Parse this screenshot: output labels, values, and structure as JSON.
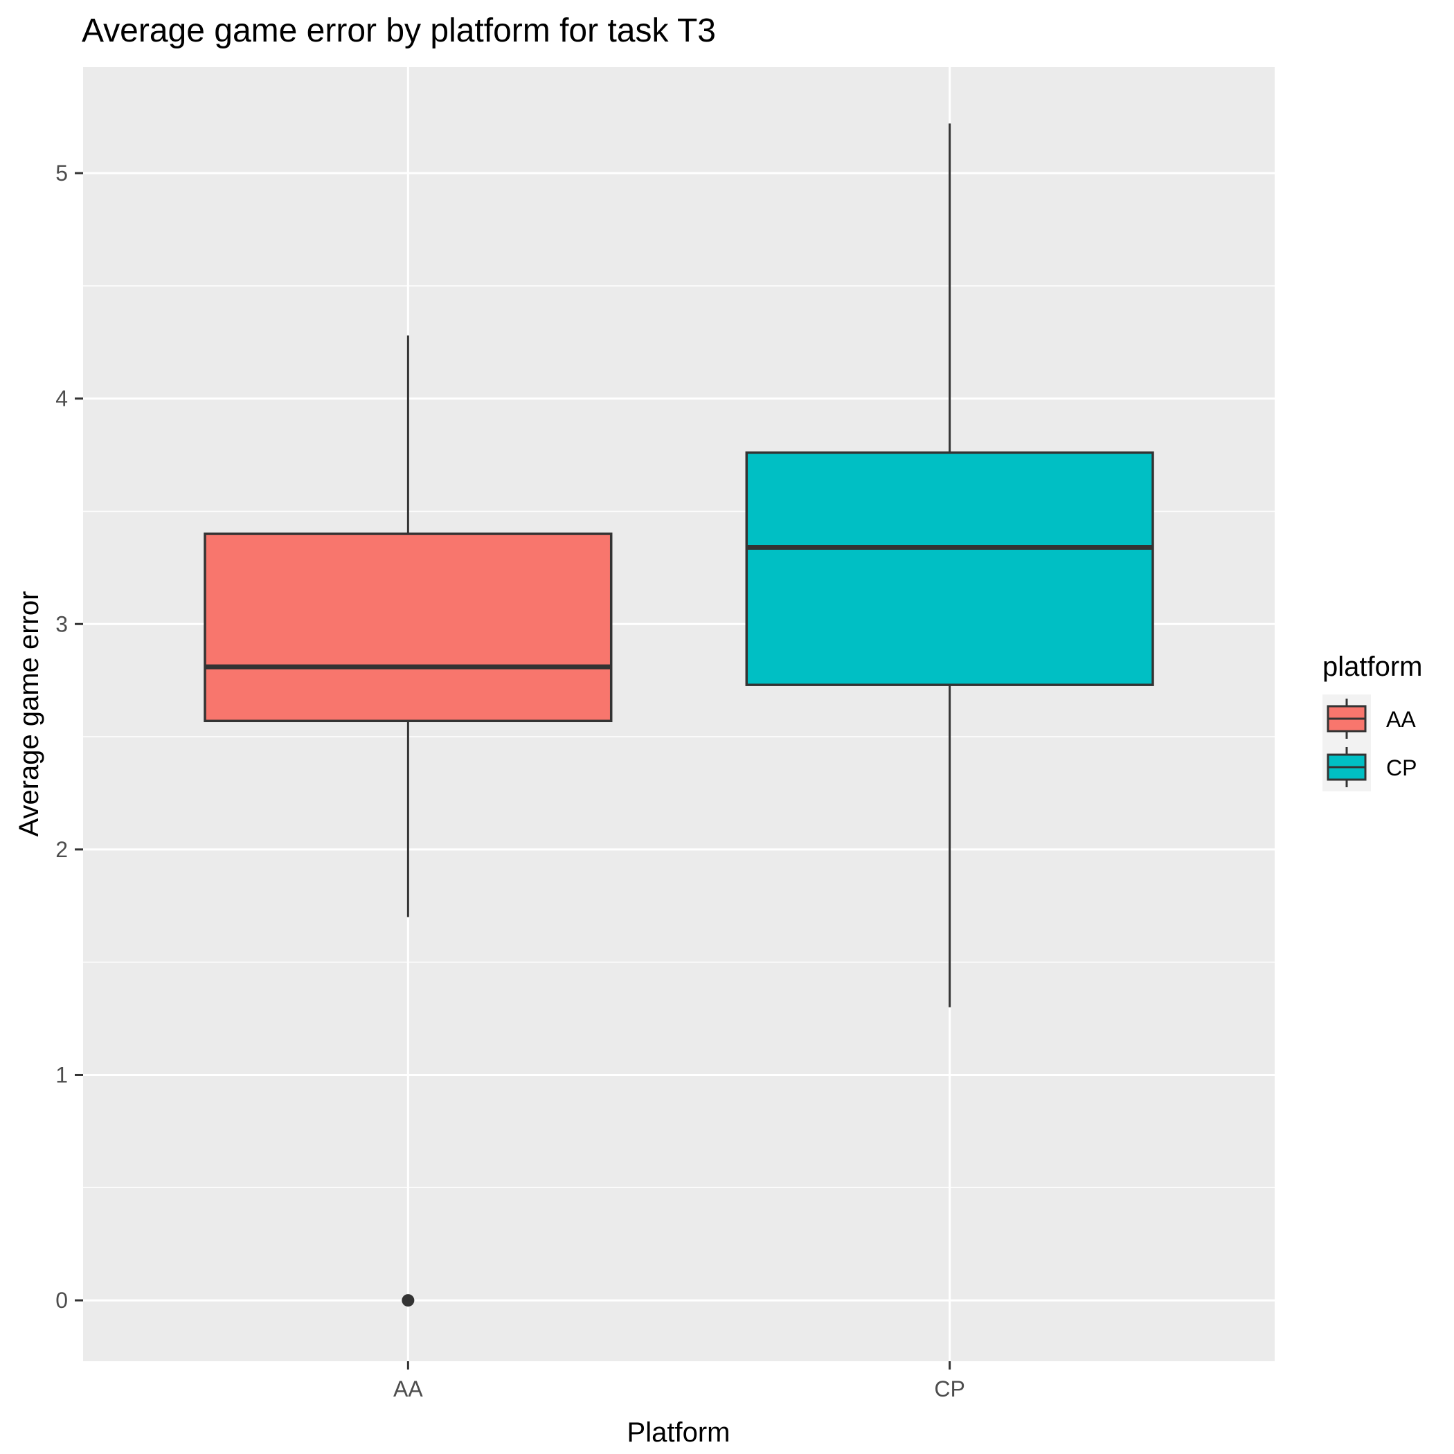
{
  "chart_data": {
    "type": "boxplot",
    "title": "Average game error by platform for task T3",
    "xlabel": "Platform",
    "ylabel": "Average game error",
    "categories": [
      "AA",
      "CP"
    ],
    "yticks": [
      0,
      1,
      2,
      3,
      4,
      5
    ],
    "ylim": [
      -0.27,
      5.47
    ],
    "grid": true,
    "legend": {
      "title": "platform",
      "position": "right",
      "entries": [
        {
          "label": "AA",
          "color": "#F8766D"
        },
        {
          "label": "CP",
          "color": "#00BFC4"
        }
      ]
    },
    "boxes": [
      {
        "category": "AA",
        "lower_whisker": 1.7,
        "q1": 2.57,
        "median": 2.81,
        "q3": 3.4,
        "upper_whisker": 4.28,
        "outliers": [
          0
        ],
        "color": "#F8766D"
      },
      {
        "category": "CP",
        "lower_whisker": 1.3,
        "q1": 2.73,
        "median": 3.34,
        "q3": 3.76,
        "upper_whisker": 5.22,
        "outliers": [],
        "color": "#00BFC4"
      }
    ]
  }
}
